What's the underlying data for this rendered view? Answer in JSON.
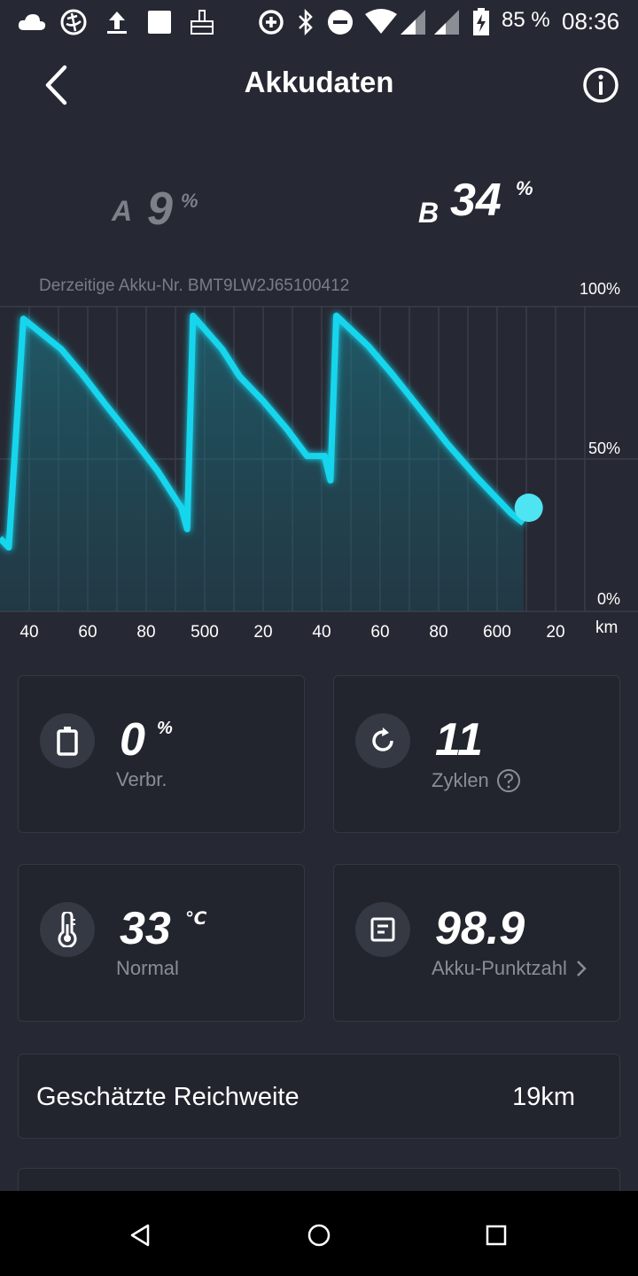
{
  "status_bar": {
    "battery_percent": "85 %",
    "time": "08:36"
  },
  "header": {
    "title": "Akkudaten"
  },
  "batteries": {
    "a": {
      "letter": "A",
      "value": "9",
      "unit": "%"
    },
    "b": {
      "letter": "B",
      "value": "34",
      "unit": "%"
    }
  },
  "chart": {
    "serial_label": "Derzeitige Akku-Nr. BMT9LW2J65100412",
    "y_tick_labels": [
      "100%",
      "50%",
      "0%"
    ],
    "x_unit": "km"
  },
  "chart_data": {
    "type": "area",
    "title": "",
    "x_tick_labels": [
      "40",
      "60",
      "80",
      "500",
      "20",
      "40",
      "60",
      "80",
      "600",
      "20"
    ],
    "xlabel": "km",
    "ylabel": "",
    "ylim": [
      0,
      100
    ],
    "yticks": [
      "0%",
      "50%",
      "100%"
    ],
    "grid": true,
    "series": [
      {
        "color": "#19d6ee",
        "points": [
          [
            0,
            24
          ],
          [
            0.3,
            21
          ],
          [
            0.8,
            96
          ],
          [
            2.1,
            86
          ],
          [
            2.8,
            78
          ],
          [
            3.6,
            68
          ],
          [
            4.6,
            56
          ],
          [
            5.4,
            46
          ],
          [
            6.2,
            34
          ],
          [
            6.4,
            27
          ],
          [
            6.6,
            97
          ],
          [
            7.6,
            86
          ],
          [
            8.2,
            77
          ],
          [
            9.0,
            69
          ],
          [
            9.8,
            60
          ],
          [
            10.5,
            51
          ],
          [
            11.1,
            51
          ],
          [
            11.3,
            43
          ],
          [
            11.5,
            97
          ],
          [
            12.6,
            87
          ],
          [
            13.4,
            78
          ],
          [
            14.4,
            66
          ],
          [
            15.3,
            55
          ],
          [
            16.3,
            44
          ],
          [
            17.5,
            32
          ],
          [
            17.9,
            29
          ]
        ],
        "current_value_percent": 34
      }
    ],
    "marker": {
      "label": "current",
      "value_percent": 34
    }
  },
  "cards": {
    "consumption": {
      "icon": "battery-icon",
      "value": "0",
      "unit": "%",
      "label": "Verbr."
    },
    "cycles": {
      "icon": "refresh-icon",
      "value": "11",
      "label": "Zyklen",
      "help_icon": "question-circle-icon"
    },
    "temperature": {
      "icon": "thermometer-icon",
      "value": "33",
      "unit": "℃",
      "label": "Normal"
    },
    "score": {
      "icon": "document-icon",
      "value": "98.9",
      "label": "Akku-Punktzahl",
      "chevron_icon": "chevron-right-icon"
    }
  },
  "range": {
    "label": "Geschätzte Reichweite",
    "value": "19km"
  },
  "colors": {
    "background": "#262933",
    "card_bg": "#22252e",
    "accent": "#19d6ee",
    "muted_text": "#8a8d96"
  }
}
